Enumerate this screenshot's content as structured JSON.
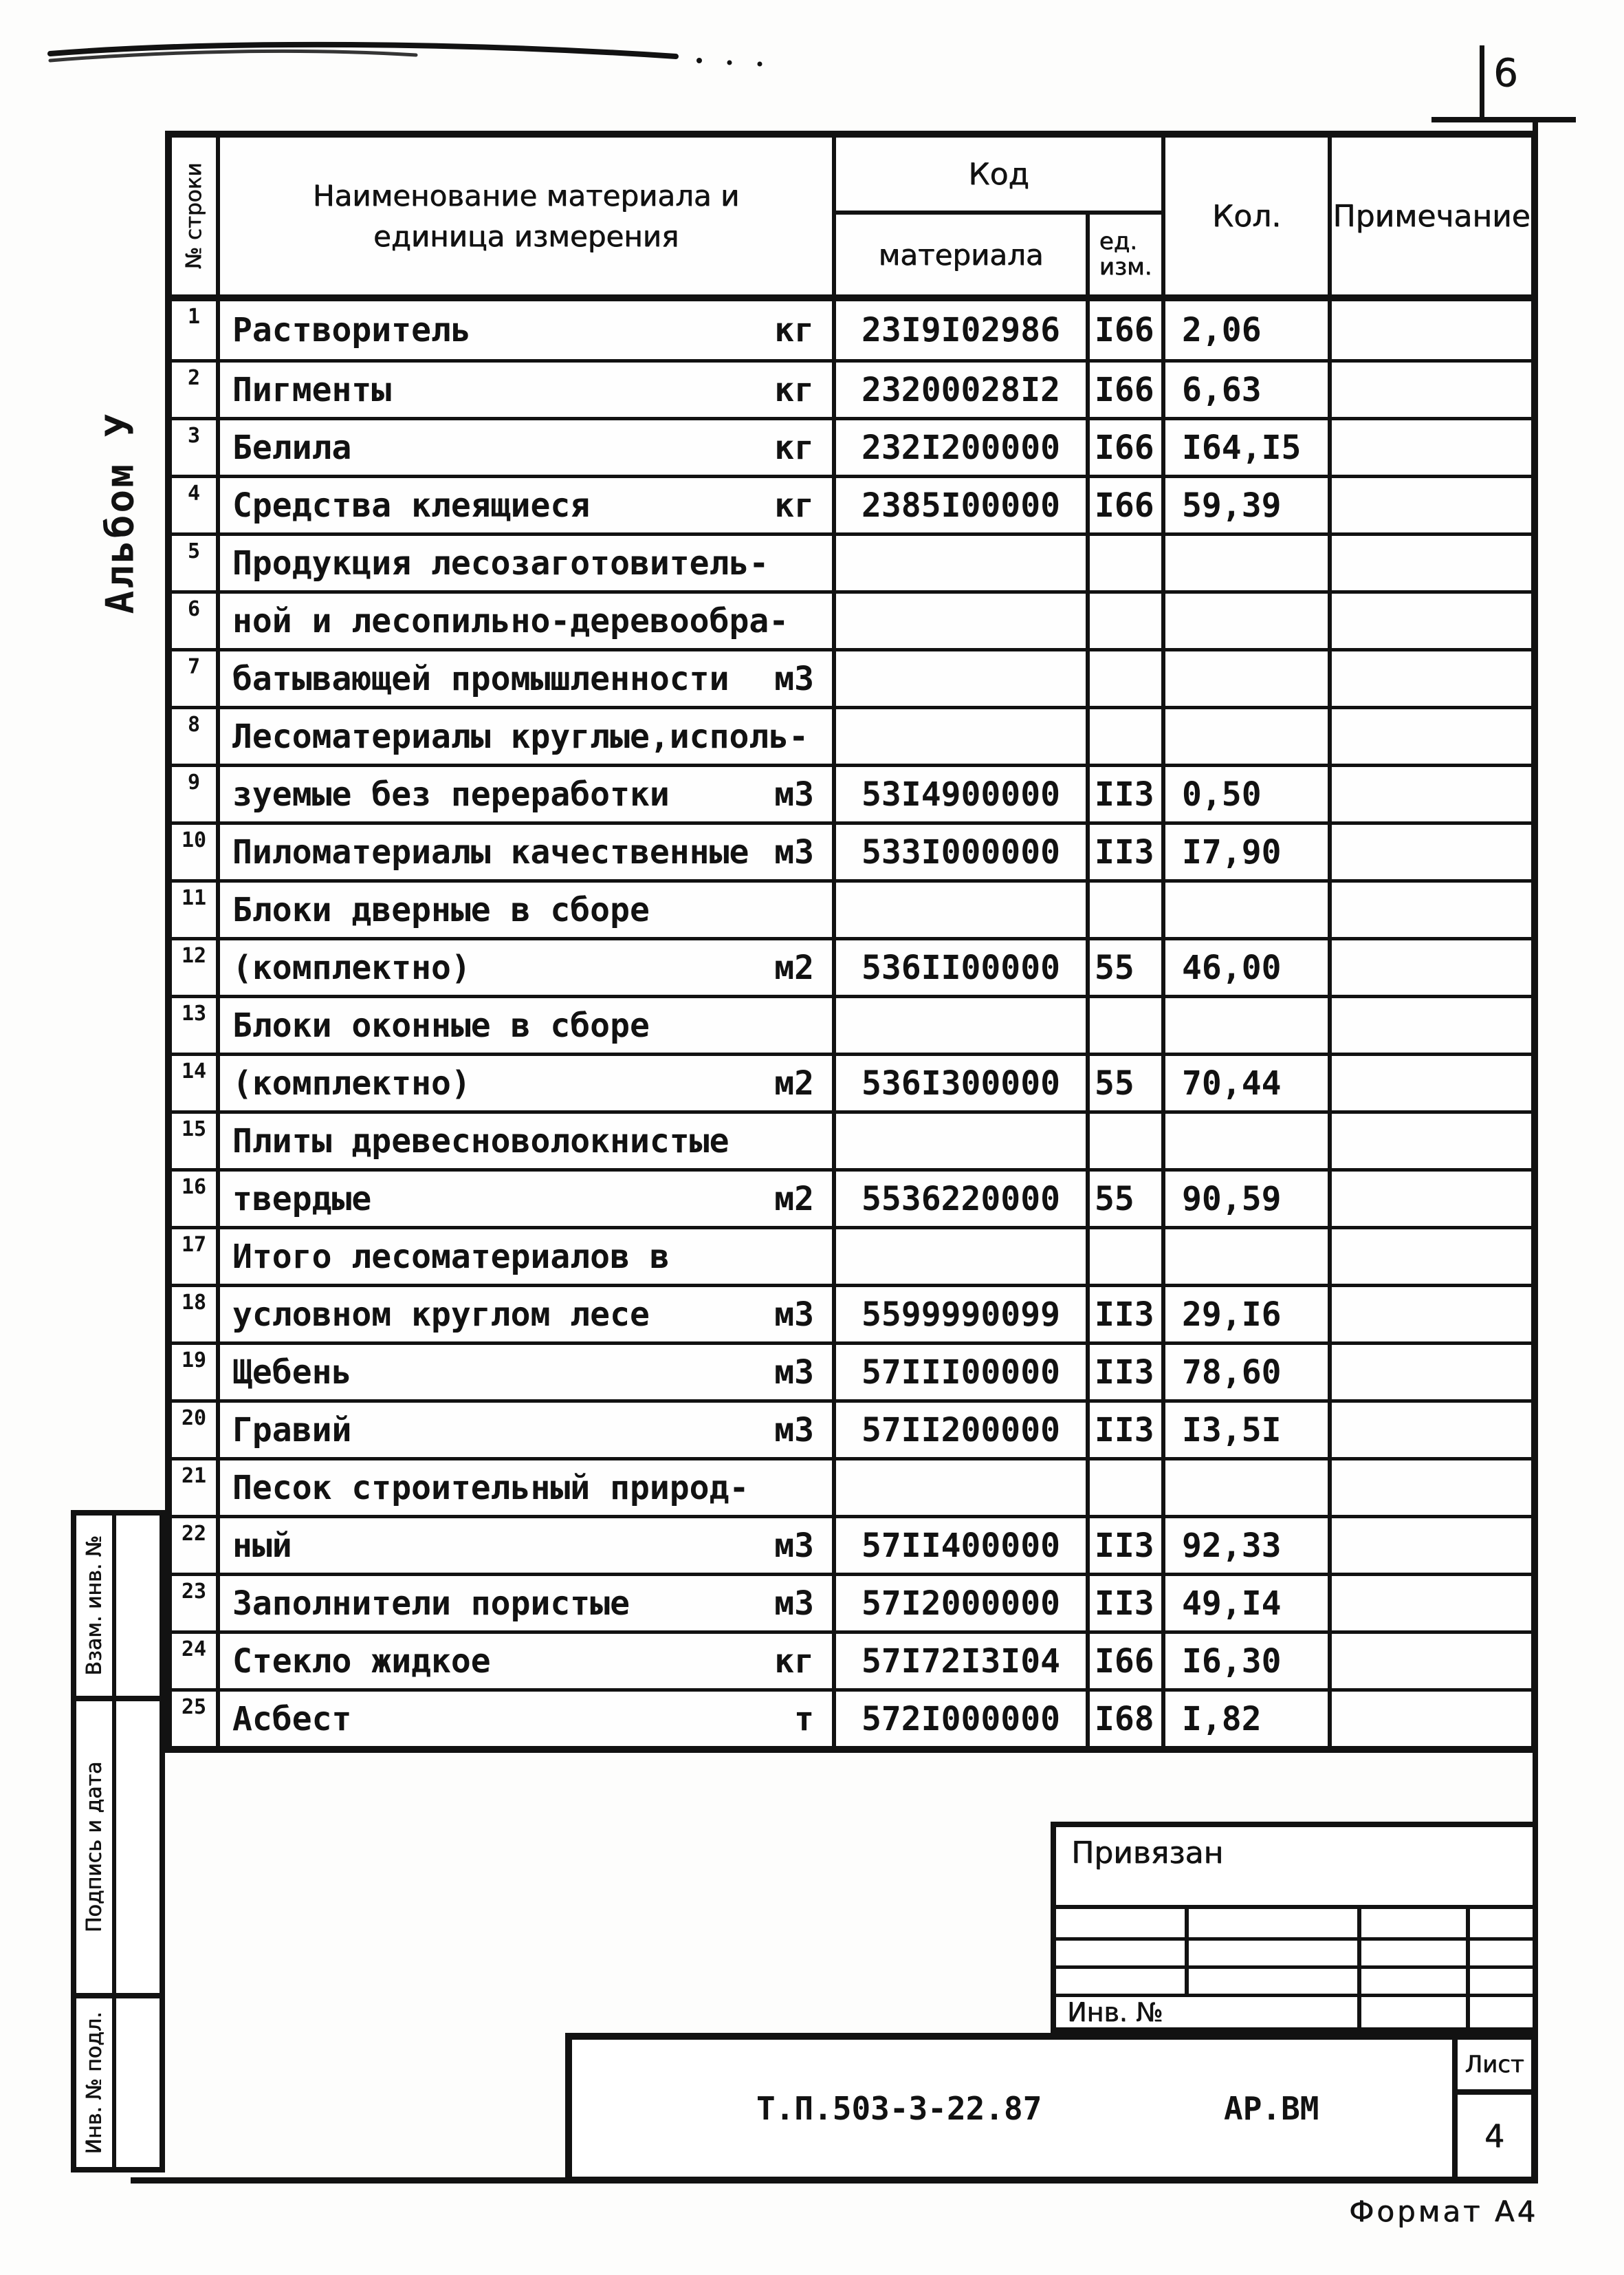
{
  "page": {
    "number": "6",
    "album_label": "Альбом У",
    "format_label": "Формат А4",
    "doc_code": "Т.П.503-3-22.87",
    "doc_type": "АР.ВМ",
    "sheet_label": "Лист",
    "sheet_number": "4",
    "stamp_privyazan": "Привязан",
    "stamp_inv": "Инв. №",
    "side_labels": [
      "Взам. инв. №",
      "Подпись и дата",
      "Инв. № подл."
    ]
  },
  "table": {
    "headers": {
      "row_no": "№ строки",
      "name_line1": "Наименование материала и",
      "name_line2": "единица измерения",
      "code": "Код",
      "code_sub": "материала",
      "unit_sub": "ед.\nизм.",
      "qty": "Кол.",
      "note": "Примечание"
    },
    "rows": [
      {
        "n": "1",
        "name": "Растворитель",
        "unit": "кг",
        "code": "23I9I02986",
        "ucode": "I66",
        "qty": "2,06",
        "note": ""
      },
      {
        "n": "2",
        "name": "Пигменты",
        "unit": "кг",
        "code": "23200028I2",
        "ucode": "I66",
        "qty": "6,63",
        "note": ""
      },
      {
        "n": "3",
        "name": "Белила",
        "unit": "кг",
        "code": "232I200000",
        "ucode": "I66",
        "qty": "I64,I5",
        "note": ""
      },
      {
        "n": "4",
        "name": "Средства клеящиеся",
        "unit": "кг",
        "code": "2385I00000",
        "ucode": "I66",
        "qty": "59,39",
        "note": ""
      },
      {
        "n": "5",
        "name": "Продукция лесозаготовитель-",
        "unit": "",
        "code": "",
        "ucode": "",
        "qty": "",
        "note": ""
      },
      {
        "n": "6",
        "name": "ной и лесопильно-деревообра-",
        "unit": "",
        "code": "",
        "ucode": "",
        "qty": "",
        "note": ""
      },
      {
        "n": "7",
        "name": "батывающей промышленности",
        "unit": "м3",
        "code": "",
        "ucode": "",
        "qty": "",
        "note": ""
      },
      {
        "n": "8",
        "name": "Лесоматериалы круглые,исполь-",
        "unit": "",
        "code": "",
        "ucode": "",
        "qty": "",
        "note": ""
      },
      {
        "n": "9",
        "name": "зуемые без переработки",
        "unit": "м3",
        "code": "53I4900000",
        "ucode": "II3",
        "qty": "0,50",
        "note": ""
      },
      {
        "n": "10",
        "name": "Пиломатериалы качественные",
        "unit": "м3",
        "code": "533I000000",
        "ucode": "II3",
        "qty": "I7,90",
        "note": ""
      },
      {
        "n": "11",
        "name": "Блоки дверные в сборе",
        "unit": "",
        "code": "",
        "ucode": "",
        "qty": "",
        "note": ""
      },
      {
        "n": "12",
        "name": "(комплектно)",
        "unit": "м2",
        "code": "536II00000",
        "ucode": "55",
        "qty": "46,00",
        "note": ""
      },
      {
        "n": "13",
        "name": "Блоки оконные в сборе",
        "unit": "",
        "code": "",
        "ucode": "",
        "qty": "",
        "note": ""
      },
      {
        "n": "14",
        "name": "(комплектно)",
        "unit": "м2",
        "code": "536I300000",
        "ucode": "55",
        "qty": "70,44",
        "note": ""
      },
      {
        "n": "15",
        "name": "Плиты древесноволокнистые",
        "unit": "",
        "code": "",
        "ucode": "",
        "qty": "",
        "note": ""
      },
      {
        "n": "16",
        "name": "твердые",
        "unit": "м2",
        "code": "5536220000",
        "ucode": "55",
        "qty": "90,59",
        "note": ""
      },
      {
        "n": "17",
        "name": "Итого лесоматериалов в",
        "unit": "",
        "code": "",
        "ucode": "",
        "qty": "",
        "note": ""
      },
      {
        "n": "18",
        "name": "условном круглом лесе",
        "unit": "м3",
        "code": "5599990099",
        "ucode": "II3",
        "qty": "29,I6",
        "note": ""
      },
      {
        "n": "19",
        "name": "Щебень",
        "unit": "м3",
        "code": "57III00000",
        "ucode": "II3",
        "qty": "78,60",
        "note": ""
      },
      {
        "n": "20",
        "name": "Гравий",
        "unit": "м3",
        "code": "57II200000",
        "ucode": "II3",
        "qty": "I3,5I",
        "note": ""
      },
      {
        "n": "21",
        "name": "Песок строительный природ-",
        "unit": "",
        "code": "",
        "ucode": "",
        "qty": "",
        "note": ""
      },
      {
        "n": "22",
        "name": "ный",
        "unit": "м3",
        "code": "57II400000",
        "ucode": "II3",
        "qty": "92,33",
        "note": ""
      },
      {
        "n": "23",
        "name": "Заполнители пористые",
        "unit": "м3",
        "code": "57I2000000",
        "ucode": "II3",
        "qty": "49,I4",
        "note": ""
      },
      {
        "n": "24",
        "name": "Стекло жидкое",
        "unit": "кг",
        "code": "57I72I3I04",
        "ucode": "I66",
        "qty": "I6,30",
        "note": ""
      },
      {
        "n": "25",
        "name": "Асбест",
        "unit": "т",
        "code": "572I000000",
        "ucode": "I68",
        "qty": "I,82",
        "note": ""
      }
    ]
  }
}
